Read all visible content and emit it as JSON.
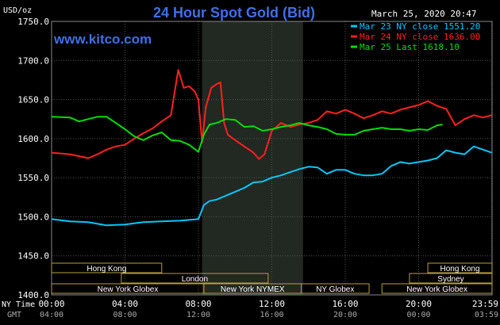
{
  "chart_data": {
    "type": "line",
    "title": "24 Hour Spot Gold (Bid)",
    "unit_label": "USD/oz",
    "timestamp": "March 25, 2020 20:47",
    "watermark": "www.kitco.com",
    "ylim": [
      1400,
      1750
    ],
    "xlim": [
      0,
      24
    ],
    "y_ticks": [
      {
        "value": 1400,
        "label": "1400.0"
      },
      {
        "value": 1450,
        "label": "1450.0"
      },
      {
        "value": 1500,
        "label": "1500.0"
      },
      {
        "value": 1550,
        "label": "1550.0"
      },
      {
        "value": 1600,
        "label": "1600.0"
      },
      {
        "value": 1650,
        "label": "1650.0"
      },
      {
        "value": 1700,
        "label": "1700.0"
      },
      {
        "value": 1750,
        "label": "1750.0"
      }
    ],
    "x_ticks": [
      {
        "value": 0,
        "ny": "00:00",
        "gmt": "04:00"
      },
      {
        "value": 4,
        "ny": "04:00",
        "gmt": "08:00"
      },
      {
        "value": 8,
        "ny": "08:00",
        "gmt": "12:00"
      },
      {
        "value": 12,
        "ny": "12:00",
        "gmt": "16:00"
      },
      {
        "value": 16,
        "ny": "16:00",
        "gmt": "20:00"
      },
      {
        "value": 20,
        "ny": "20:00",
        "gmt": "00:00"
      },
      {
        "value": 23.983,
        "ny": "23:59",
        "gmt": "03:59"
      }
    ],
    "x_row_labels": {
      "ny": "NY Time",
      "gmt": "GMT"
    },
    "shaded_range": [
      8.2,
      13.7
    ],
    "grid": true,
    "legend_position": "top-right",
    "series": [
      {
        "name": "Mar 23 NY close 1551.20",
        "color": "#00c8ff",
        "x": [
          0,
          1,
          2,
          3,
          4,
          5,
          6,
          7,
          8,
          8.3,
          8.6,
          9,
          9.5,
          10,
          10.5,
          11,
          11.5,
          12,
          12.5,
          13,
          13.5,
          14,
          14.5,
          15,
          15.5,
          16,
          16.5,
          17,
          17.5,
          18,
          18.5,
          19,
          19.5,
          20,
          20.5,
          21,
          21.5,
          22,
          22.5,
          23,
          23.5,
          23.98
        ],
        "values": [
          1497,
          1494,
          1493,
          1489,
          1490,
          1493,
          1494,
          1495,
          1497,
          1515,
          1520,
          1522,
          1527,
          1532,
          1537,
          1544,
          1545,
          1550,
          1553,
          1557,
          1561,
          1564,
          1563,
          1555,
          1560,
          1560,
          1555,
          1553,
          1553,
          1555,
          1565,
          1570,
          1568,
          1570,
          1572,
          1575,
          1585,
          1582,
          1580,
          1590,
          1586,
          1582
        ]
      },
      {
        "name": "Mar 24 NY close 1636.00",
        "color": "#ff2020",
        "x": [
          0,
          1,
          2,
          2.5,
          3,
          3.5,
          4,
          4.5,
          5,
          5.5,
          6,
          6.5,
          6.9,
          7.2,
          7.5,
          7.8,
          8,
          8.2,
          8.4,
          8.7,
          9,
          9.2,
          9.4,
          9.6,
          10,
          10.5,
          11,
          11.3,
          11.6,
          12,
          12.5,
          13,
          13.5,
          14,
          14.5,
          15,
          15.5,
          16,
          16.5,
          17,
          17.5,
          18,
          18.5,
          19,
          19.5,
          20,
          20.5,
          21,
          21.5,
          22,
          22.5,
          23,
          23.5,
          23.98
        ],
        "values": [
          1582,
          1580,
          1575,
          1580,
          1586,
          1590,
          1592,
          1600,
          1607,
          1613,
          1622,
          1630,
          1688,
          1665,
          1667,
          1660,
          1650,
          1595,
          1640,
          1665,
          1670,
          1672,
          1620,
          1605,
          1598,
          1590,
          1582,
          1574,
          1580,
          1610,
          1620,
          1615,
          1618,
          1620,
          1624,
          1635,
          1632,
          1637,
          1632,
          1626,
          1630,
          1635,
          1632,
          1637,
          1640,
          1643,
          1648,
          1642,
          1638,
          1617,
          1625,
          1630,
          1627,
          1630
        ]
      },
      {
        "name": "Mar 25 Last 1618.10",
        "color": "#00dd00",
        "x": [
          0,
          1,
          1.5,
          2,
          2.5,
          3,
          3.5,
          4,
          4.5,
          5,
          5.5,
          6,
          6.5,
          7,
          7.5,
          8,
          8.3,
          8.6,
          9,
          9.5,
          10,
          10.5,
          11,
          11.5,
          12,
          12.5,
          13,
          13.5,
          14,
          14.5,
          15,
          15.5,
          16,
          16.5,
          17,
          17.5,
          18,
          18.5,
          19,
          19.5,
          20,
          20.5,
          21,
          21.3
        ],
        "values": [
          1628,
          1627,
          1622,
          1625,
          1628,
          1628,
          1620,
          1612,
          1603,
          1598,
          1604,
          1608,
          1598,
          1597,
          1592,
          1583,
          1605,
          1618,
          1620,
          1625,
          1624,
          1615,
          1616,
          1610,
          1612,
          1615,
          1617,
          1620,
          1617,
          1615,
          1612,
          1606,
          1605,
          1605,
          1610,
          1612,
          1614,
          1612,
          1612,
          1610,
          1612,
          1611,
          1617,
          1618
        ]
      }
    ],
    "sessions": [
      {
        "label": "Hong Kong",
        "row": 1,
        "start": 0,
        "end": 6
      },
      {
        "label": "London",
        "row": 2,
        "start": 3.8,
        "end": 11.8
      },
      {
        "label": "New York Globex",
        "row": 3,
        "start": 0,
        "end": 8.3
      },
      {
        "label": "New York NYMEX",
        "row": 3,
        "start": 8.3,
        "end": 13.6
      },
      {
        "label": "NY Globex",
        "row": 3,
        "start": 13.6,
        "end": 17.3
      },
      {
        "label": "Hong Kong",
        "row": 1,
        "start": 20.5,
        "end": 24
      },
      {
        "label": "Sydney",
        "row": 2,
        "start": 19.5,
        "end": 24
      },
      {
        "label": "New York Globex",
        "row": 3,
        "start": 18,
        "end": 24
      }
    ]
  }
}
